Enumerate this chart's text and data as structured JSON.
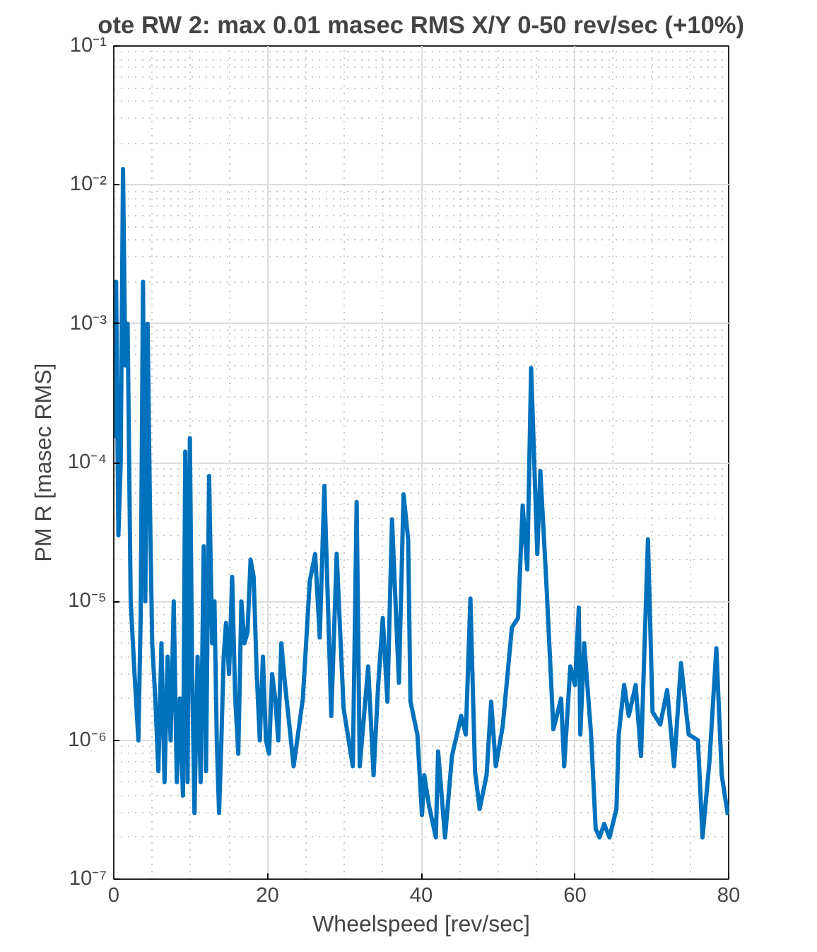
{
  "chart_data": {
    "type": "line",
    "title": "ote RW 2: max 0.01 masec RMS X/Y 0-50 rev/sec (+10%)",
    "xlabel": "Wheelspeed [rev/sec]",
    "ylabel": "PM R [masec RMS]",
    "log": "y",
    "grid": true,
    "xlim": [
      0,
      80
    ],
    "xticks": [
      0,
      20,
      40,
      60,
      80
    ],
    "ylim": [
      1e-07,
      0.1
    ],
    "yticks": [
      {
        "value": 1e-07,
        "label": "10⁻⁷"
      },
      {
        "value": 1e-06,
        "label": "10⁻⁶"
      },
      {
        "value": 1e-05,
        "label": "10⁻⁵"
      },
      {
        "value": 0.0001,
        "label": "10⁻⁴"
      },
      {
        "value": 0.001,
        "label": "10⁻³"
      },
      {
        "value": 0.01,
        "label": "10⁻²"
      },
      {
        "value": 0.1,
        "label": "10⁻¹"
      }
    ],
    "series": [
      {
        "color": "#0072bd",
        "x": [
          0,
          0.3,
          0.6,
          0.9,
          1.2,
          1.5,
          1.8,
          2.2,
          2.7,
          3.2,
          3.5,
          3.8,
          4.1,
          4.4,
          4.7,
          5.0,
          5.4,
          5.8,
          6.2,
          6.6,
          7.0,
          7.4,
          7.8,
          8.2,
          8.6,
          9.0,
          9.3,
          9.6,
          9.9,
          10.2,
          10.5,
          10.9,
          11.3,
          11.7,
          12.0,
          12.4,
          12.8,
          13.1,
          13.4,
          13.7,
          14.0,
          14.3,
          14.6,
          15.0,
          15.4,
          15.8,
          16.2,
          16.6,
          17.0,
          17.4,
          17.8,
          18.2,
          18.6,
          19.0,
          19.4,
          19.8,
          20.2,
          20.6,
          21.0,
          21.4,
          21.8,
          22.2,
          23.4,
          24.6,
          25.5,
          26.2,
          26.8,
          27.4,
          28.3,
          29.0,
          29.9,
          31.1,
          31.6,
          32.0,
          33.1,
          33.8,
          34.4,
          35.0,
          35.6,
          36.2,
          37.1,
          37.7,
          38.3,
          38.6,
          39.5,
          40.1,
          40.4,
          41.0,
          41.9,
          42.2,
          43.1,
          44.0,
          45.2,
          45.8,
          46.4,
          47.0,
          47.6,
          48.5,
          49.1,
          49.7,
          50.6,
          51.8,
          52.6,
          53.2,
          53.8,
          54.3,
          55.1,
          55.5,
          56.3,
          57.2,
          58.2,
          58.6,
          59.4,
          60.0,
          60.5,
          60.7,
          61.2,
          62.1,
          62.7,
          63.2,
          63.8,
          64.5,
          65.4,
          65.7,
          66.4,
          67.0,
          67.9,
          68.6,
          69.5,
          70.1,
          71.1,
          72.0,
          72.9,
          73.8,
          74.8,
          76.0,
          76.6,
          77.5,
          78.4,
          79.1,
          79.9
        ],
        "values": [
          0.00015,
          0.002,
          3e-05,
          0.0001,
          0.013,
          0.0005,
          0.001,
          1e-05,
          3e-06,
          1e-06,
          8e-06,
          0.002,
          1e-05,
          0.001,
          5e-05,
          5e-06,
          2e-06,
          6e-07,
          5e-06,
          5e-07,
          4e-06,
          1e-06,
          1e-05,
          5e-07,
          2e-06,
          4e-07,
          0.00012,
          5e-07,
          0.00015,
          3e-06,
          3e-07,
          4e-06,
          5e-07,
          2.5e-05,
          6e-07,
          8e-05,
          5e-06,
          1e-05,
          1e-06,
          3e-07,
          1e-06,
          4e-06,
          7e-06,
          3e-06,
          1.5e-05,
          2e-06,
          8e-07,
          1e-05,
          5e-06,
          6e-06,
          2e-05,
          1.5e-05,
          3e-06,
          1e-06,
          4e-06,
          1e-06,
          8e-07,
          3e-06,
          2e-06,
          1e-06,
          5e-06,
          2.8e-06,
          6.5e-07,
          2e-06,
          1.4e-05,
          2.2e-05,
          5.5e-06,
          6.8e-05,
          1.5e-06,
          2.2e-05,
          1.7e-06,
          6.5e-07,
          5.2e-05,
          6.5e-07,
          3.4e-06,
          5.6e-07,
          2.5e-06,
          7.6e-06,
          1.9e-06,
          3.9e-05,
          2.6e-06,
          5.9e-05,
          2.8e-05,
          1.9e-06,
          1.1e-06,
          2.9e-07,
          5.6e-07,
          3.4e-07,
          2e-07,
          8.3e-07,
          2e-07,
          7.7e-07,
          1.5e-06,
          1.1e-06,
          1.05e-05,
          6e-07,
          3.2e-07,
          5.6e-07,
          1.9e-06,
          6.5e-07,
          1.26e-06,
          6.5e-06,
          7.6e-06,
          4.9e-05,
          1.7e-05,
          0.00048,
          2.2e-05,
          8.7e-05,
          1.3e-05,
          1.2e-06,
          2e-06,
          6.5e-07,
          3.4e-06,
          2.5e-06,
          9e-06,
          1.1e-06,
          5e-06,
          1.1e-06,
          2.3e-07,
          2e-07,
          2.5e-07,
          2e-07,
          3.2e-07,
          1.1e-06,
          2.5e-06,
          1.5e-06,
          2.5e-06,
          7.7e-07,
          2.8e-05,
          1.6e-06,
          1.3e-06,
          2.3e-06,
          6.5e-07,
          3.6e-06,
          1.1e-06,
          1e-06,
          2e-07,
          7e-07,
          4.6e-06,
          5.6e-07,
          2.9e-07
        ]
      }
    ]
  }
}
